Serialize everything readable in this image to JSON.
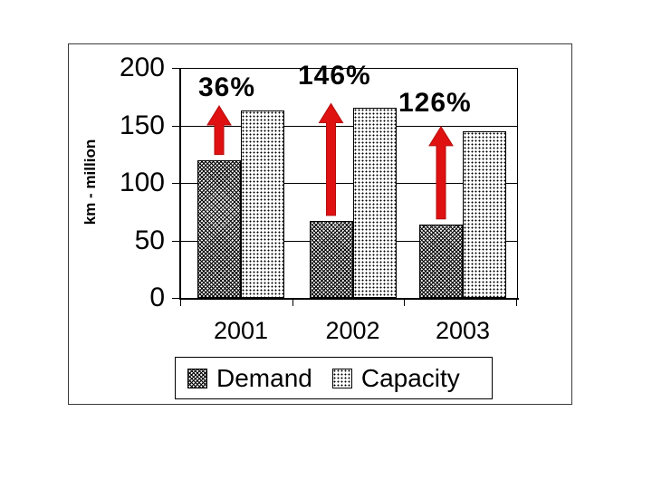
{
  "chart_data": {
    "type": "bar",
    "title": "",
    "ylabel": "km - million",
    "categories": [
      "2001",
      "2002",
      "2003"
    ],
    "series": [
      {
        "name": "Demand",
        "pattern": "diagonal-crosshatch",
        "values": [
          120,
          67,
          64
        ]
      },
      {
        "name": "Capacity",
        "pattern": "dots",
        "values": [
          163,
          165,
          145
        ]
      }
    ],
    "annotations": [
      {
        "label": "36%",
        "category": "2001"
      },
      {
        "label": "146%",
        "category": "2002"
      },
      {
        "label": "126%",
        "category": "2003"
      }
    ],
    "y_ticks": [
      0,
      50,
      100,
      150,
      200
    ],
    "ylim": [
      0,
      200
    ],
    "grid": true,
    "legend_position": "bottom"
  },
  "colors": {
    "arrow_red": "#e01111",
    "axis_black": "#000000",
    "background": "#ffffff"
  }
}
